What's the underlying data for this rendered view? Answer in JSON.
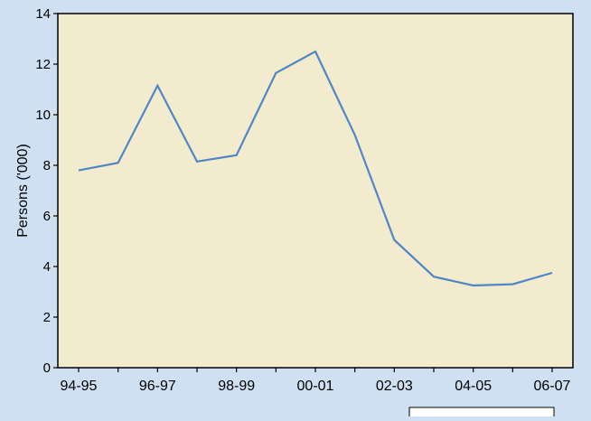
{
  "chart_data": {
    "type": "line",
    "title": "",
    "xlabel": "",
    "ylabel": "Persons ('000)",
    "ylim": [
      0,
      14
    ],
    "yticks": [
      0,
      2,
      4,
      6,
      8,
      10,
      12,
      14
    ],
    "grid": false,
    "legend": "none",
    "categories": [
      "94-95",
      "95-96",
      "96-97",
      "97-98",
      "98-99",
      "99-00",
      "00-01",
      "01-02",
      "02-03",
      "03-04",
      "04-05",
      "05-06",
      "06-07"
    ],
    "labeled_categories": [
      "94-95",
      "96-97",
      "98-99",
      "00-01",
      "02-03",
      "04-05",
      "06-07"
    ],
    "series": [
      {
        "values": [
          7.8,
          8.1,
          11.15,
          8.15,
          8.4,
          11.65,
          12.5,
          9.2,
          5.05,
          3.6,
          3.25,
          3.3,
          3.75
        ]
      }
    ],
    "colors": {
      "page_background": "#cfe0f3",
      "plot_background": "#f3ebce",
      "line": "#4f86c6",
      "axis": "#000000"
    }
  }
}
